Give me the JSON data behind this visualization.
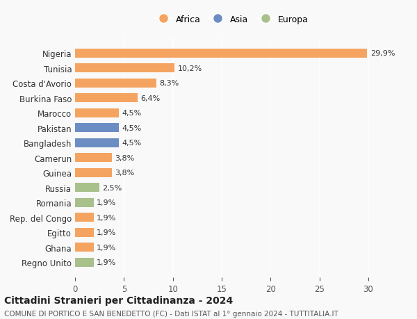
{
  "countries": [
    "Nigeria",
    "Tunisia",
    "Costa d'Avorio",
    "Burkina Faso",
    "Marocco",
    "Pakistan",
    "Bangladesh",
    "Camerun",
    "Guinea",
    "Russia",
    "Romania",
    "Rep. del Congo",
    "Egitto",
    "Ghana",
    "Regno Unito"
  ],
  "values": [
    29.9,
    10.2,
    8.3,
    6.4,
    4.5,
    4.5,
    4.5,
    3.8,
    3.8,
    2.5,
    1.9,
    1.9,
    1.9,
    1.9,
    1.9
  ],
  "labels": [
    "29,9%",
    "10,2%",
    "8,3%",
    "6,4%",
    "4,5%",
    "4,5%",
    "4,5%",
    "3,8%",
    "3,8%",
    "2,5%",
    "1,9%",
    "1,9%",
    "1,9%",
    "1,9%",
    "1,9%"
  ],
  "continents": [
    "Africa",
    "Africa",
    "Africa",
    "Africa",
    "Africa",
    "Asia",
    "Asia",
    "Africa",
    "Africa",
    "Europa",
    "Europa",
    "Africa",
    "Africa",
    "Africa",
    "Europa"
  ],
  "colors": {
    "Africa": "#F4A460",
    "Asia": "#6B8DC4",
    "Europa": "#A8C08A"
  },
  "legend_order": [
    "Africa",
    "Asia",
    "Europa"
  ],
  "legend_colors": {
    "Africa": "#F4A460",
    "Asia": "#6B8DC4",
    "Europa": "#A8C08A"
  },
  "xlim": [
    0,
    32
  ],
  "xticks": [
    0,
    5,
    10,
    15,
    20,
    25,
    30
  ],
  "title": "Cittadini Stranieri per Cittadinanza - 2024",
  "subtitle": "COMUNE DI PORTICO E SAN BENEDETTO (FC) - Dati ISTAT al 1° gennaio 2024 - TUTTITALIA.IT",
  "background_color": "#f9f9f9",
  "bar_height": 0.6,
  "figsize": [
    6.0,
    4.6
  ],
  "dpi": 100
}
